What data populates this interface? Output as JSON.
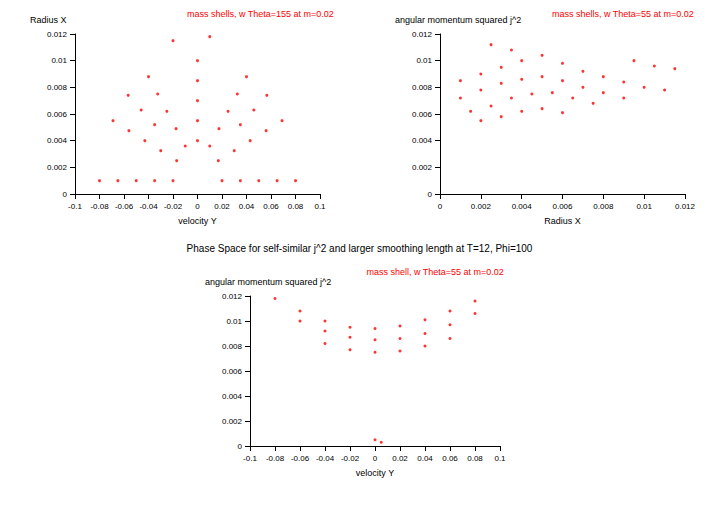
{
  "title": "Phase Space for self-similar j^2 and larger smoothing length at T=12, Phi=100",
  "chart_data": [
    {
      "type": "scatter",
      "title": "mass shells, w Theta=155 at m=0.02",
      "xlabel": "velocity Y",
      "ylabel": "Radius X",
      "color": "#ff0000",
      "marker": "dot",
      "grid": false,
      "xlim": [
        -0.1,
        0.1
      ],
      "xticks": [
        -0.1,
        -0.08,
        -0.06,
        -0.04,
        -0.02,
        0,
        0.02,
        0.04,
        0.06,
        0.08,
        0.1
      ],
      "ylim": [
        0,
        0.012
      ],
      "yticks": [
        0,
        0.002,
        0.004,
        0.006,
        0.008,
        0.01,
        0.012
      ],
      "x": [
        0.08,
        0.069,
        0.0566,
        0.04,
        0,
        -0.04,
        -0.0566,
        -0.069,
        -0.08,
        0.065,
        0.056,
        0.046,
        0.0325,
        0,
        -0.0325,
        -0.046,
        -0.056,
        -0.065,
        0.05,
        0.043,
        0.035,
        0.025,
        0,
        -0.025,
        -0.035,
        -0.043,
        -0.05,
        0.035,
        0.03,
        0.0175,
        0,
        -0.0175,
        -0.03,
        -0.035,
        0.02,
        0.017,
        0.01,
        0,
        -0.01,
        -0.017,
        -0.02,
        -0.02,
        0.01
      ],
      "values": [
        0.001,
        0.0055,
        0.0074,
        0.0088,
        0.01,
        0.0088,
        0.0074,
        0.0055,
        0.001,
        0.001,
        0.00475,
        0.0063,
        0.0075,
        0.0085,
        0.0075,
        0.0063,
        0.00475,
        0.001,
        0.001,
        0.004,
        0.0052,
        0.0062,
        0.007,
        0.0062,
        0.0052,
        0.004,
        0.001,
        0.001,
        0.00325,
        0.0049,
        0.0055,
        0.0049,
        0.00325,
        0.001,
        0.001,
        0.0025,
        0.0036,
        0.004,
        0.0036,
        0.0025,
        0.001,
        0.0115,
        0.0118
      ]
    },
    {
      "type": "scatter",
      "title": "mass shells, w Theta=55 at m=0.02",
      "xlabel": "Radius X",
      "ylabel": "angular momentum squared j^2",
      "color": "#ff0000",
      "marker": "dot",
      "grid": false,
      "xlim": [
        0,
        0.012
      ],
      "xticks": [
        0,
        0.002,
        0.004,
        0.006,
        0.008,
        0.01,
        0.012
      ],
      "ylim": [
        0,
        0.012
      ],
      "yticks": [
        0,
        0.002,
        0.004,
        0.006,
        0.008,
        0.01,
        0.012
      ],
      "x": [
        0.001,
        0.002,
        0.003,
        0.004,
        0.005,
        0.006,
        0.007,
        0.008,
        0.009,
        0.01,
        0.011,
        0.001,
        0.002,
        0.003,
        0.004,
        0.005,
        0.006,
        0.007,
        0.008,
        0.009,
        0.0015,
        0.0025,
        0.0035,
        0.0045,
        0.0055,
        0.0065,
        0.0075,
        0.002,
        0.003,
        0.004,
        0.005,
        0.006,
        0.0095,
        0.0105,
        0.0115,
        0.0035,
        0.0025
      ],
      "values": [
        0.0085,
        0.009,
        0.0095,
        0.01,
        0.0104,
        0.0098,
        0.0092,
        0.0088,
        0.0084,
        0.008,
        0.0078,
        0.0072,
        0.0078,
        0.0083,
        0.0086,
        0.0088,
        0.0085,
        0.008,
        0.0076,
        0.0072,
        0.0062,
        0.0066,
        0.0072,
        0.0075,
        0.0076,
        0.0072,
        0.0068,
        0.0055,
        0.0058,
        0.0062,
        0.0064,
        0.0061,
        0.01,
        0.0096,
        0.0094,
        0.0108,
        0.0112
      ]
    },
    {
      "type": "scatter",
      "title": "mass shell, w Theta=55 at m=0.02",
      "xlabel": "velocity Y",
      "ylabel": "angular momentum squared j^2",
      "color": "#ff0000",
      "marker": "dot",
      "grid": false,
      "xlim": [
        -0.1,
        0.1
      ],
      "xticks": [
        -0.1,
        -0.08,
        -0.06,
        -0.04,
        -0.02,
        0,
        0.02,
        0.04,
        0.06,
        0.08,
        0.1
      ],
      "ylim": [
        0,
        0.012
      ],
      "yticks": [
        0,
        0.002,
        0.004,
        0.006,
        0.008,
        0.01,
        0.012
      ],
      "x": [
        -0.08,
        -0.06,
        -0.04,
        -0.02,
        0,
        0.02,
        0.04,
        0.06,
        0.08,
        -0.06,
        -0.04,
        -0.02,
        0,
        0.02,
        0.04,
        0.06,
        0.08,
        -0.04,
        -0.02,
        0,
        0.02,
        0.04,
        0.06,
        0,
        0.005
      ],
      "values": [
        0.0118,
        0.0108,
        0.01,
        0.0095,
        0.0094,
        0.0096,
        0.0101,
        0.0108,
        0.0116,
        0.01,
        0.0092,
        0.0087,
        0.0085,
        0.0086,
        0.009,
        0.0097,
        0.0106,
        0.0082,
        0.0077,
        0.0075,
        0.0076,
        0.008,
        0.0086,
        0.0005,
        0.0003
      ]
    }
  ]
}
